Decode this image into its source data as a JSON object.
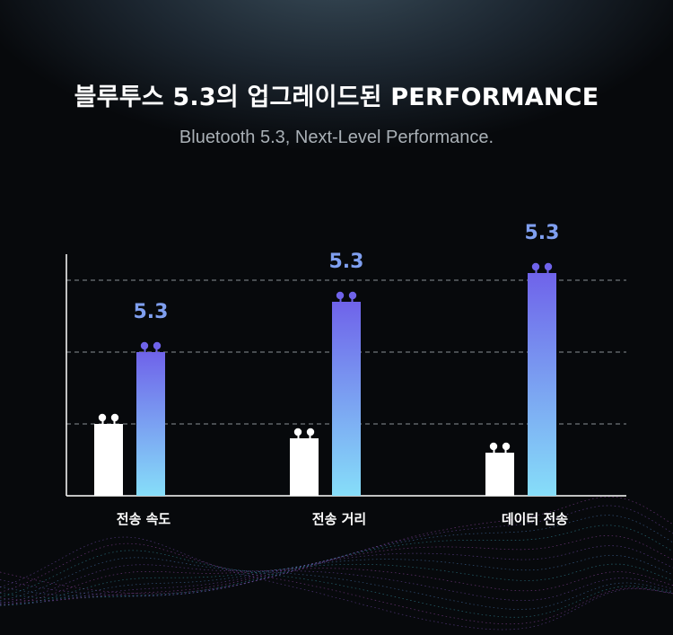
{
  "header": {
    "title": "블루투스 5.3의 업그레이드된 PERFORMANCE",
    "subtitle": "Bluetooth 5.3, Next-Level Performance."
  },
  "colors": {
    "background": "#06080b",
    "baseline_bar": "#ffffff",
    "bt53_bar_top": "#6f63ea",
    "bt53_bar_bottom": "#86def9",
    "value_label": "#7f9ff0",
    "grid": "#8a8f94"
  },
  "chart_data": {
    "type": "bar",
    "categories": [
      "전송 속도",
      "전송 거리",
      "데이터 전송"
    ],
    "series": [
      {
        "values": [
          1.0,
          0.8,
          0.6
        ]
      },
      {
        "name": "5.3",
        "values": [
          2.0,
          2.7,
          3.1
        ]
      }
    ],
    "data_labels": [
      "5.3",
      "5.3",
      "5.3"
    ],
    "ylim": [
      0,
      3.5
    ],
    "grid": "dashed horizontal",
    "legend": "none",
    "value_labels_on": "second series"
  }
}
